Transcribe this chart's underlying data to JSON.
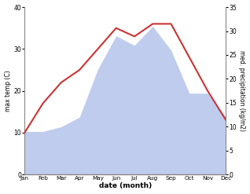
{
  "months": [
    "Jan",
    "Feb",
    "Mar",
    "Apr",
    "May",
    "Jun",
    "Jul",
    "Aug",
    "Sep",
    "Oct",
    "Nov",
    "Dec"
  ],
  "temperature": [
    10,
    17,
    22,
    25,
    30,
    35,
    33,
    36,
    36,
    28,
    20,
    13
  ],
  "precipitation": [
    9,
    9,
    10,
    12,
    22,
    29,
    27,
    31,
    26,
    17,
    17,
    12
  ],
  "temp_color": "#cc3333",
  "precip_color": "#c0ccee",
  "background_color": "#ffffff",
  "ylabel_left": "max temp (C)",
  "ylabel_right": "med. precipitation (kg/m2)",
  "xlabel": "date (month)",
  "ylim_left": [
    0,
    40
  ],
  "ylim_right": [
    0,
    35
  ],
  "yticks_left": [
    0,
    10,
    20,
    30,
    40
  ],
  "yticks_right": [
    0,
    5,
    10,
    15,
    20,
    25,
    30,
    35
  ]
}
